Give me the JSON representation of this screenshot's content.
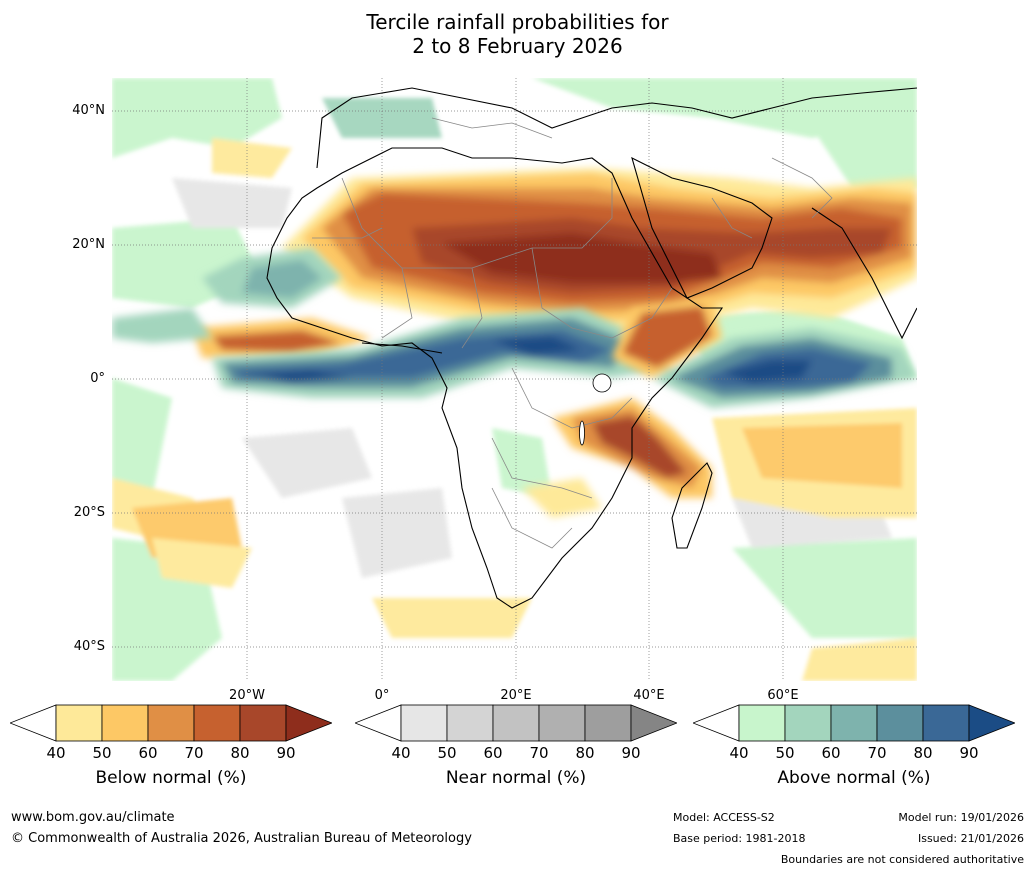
{
  "title": {
    "line1": "Tercile rainfall probabilities for",
    "line2": "2 to 8 February 2026"
  },
  "lat_labels": [
    "40°N",
    "20°N",
    "0°",
    "20°S",
    "40°S"
  ],
  "lon_labels": [
    "20°W",
    "0°",
    "20°E",
    "40°E",
    "60°E"
  ],
  "colorbars": [
    {
      "label": "Below normal (%)",
      "ticks": [
        "40",
        "50",
        "60",
        "70",
        "80",
        "90"
      ],
      "colors": [
        "#ffffff",
        "#fee999",
        "#fdc865",
        "#e08f45",
        "#c6612f",
        "#a8472a",
        "#8e2d1c"
      ]
    },
    {
      "label": "Near normal (%)",
      "ticks": [
        "40",
        "50",
        "60",
        "70",
        "80",
        "90"
      ],
      "colors": [
        "#ffffff",
        "#e6e6e6",
        "#d4d4d4",
        "#c2c2c2",
        "#b0b0b0",
        "#9e9e9e",
        "#858585"
      ]
    },
    {
      "label": "Above normal (%)",
      "ticks": [
        "40",
        "50",
        "60",
        "70",
        "80",
        "90"
      ],
      "colors": [
        "#ffffff",
        "#c8f5cc",
        "#a3d5bd",
        "#7eb3ad",
        "#5c8f9d",
        "#3a6896",
        "#1b4c85"
      ]
    }
  ],
  "footer": {
    "url": "www.bom.gov.au/climate",
    "copyright": "© Commonwealth of Australia 2026, Australian Bureau of Meteorology",
    "model": "Model: ACCESS-S2",
    "base_period": "Base period: 1981-2018",
    "model_run": "Model run: 19/01/2026",
    "issued": "Issued: 21/01/2026",
    "disclaimer": "Boundaries are not considered authoritative"
  }
}
